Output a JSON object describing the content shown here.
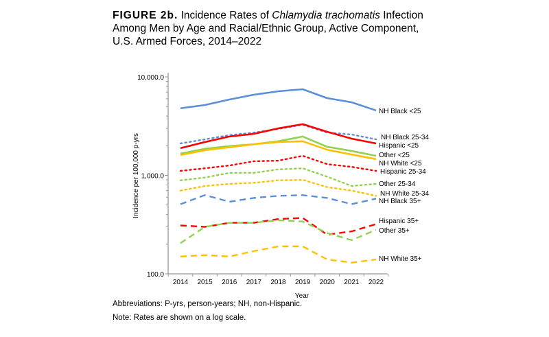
{
  "title": {
    "figure": "FIGURE 2b.",
    "pre": " Incidence Rates of ",
    "italic": "Chlamydia trachomatis",
    "post": " Infection Among Men by Age and Racial/Ethnic Group, Active Component, U.S. Armed Forces, 2014–2022"
  },
  "notes": [
    "Abbreviations: P-yrs, person-years; NH, non-Hispanic.",
    "Note: Rates are shown on a log scale."
  ],
  "chart_data": {
    "type": "line",
    "xlabel": "Year",
    "ylabel": "Incidence per 100,000 p-yrs",
    "yscale": "log",
    "ylim": [
      100,
      10000
    ],
    "yticks": [
      "100.0",
      "1,000.0",
      "10,000.0"
    ],
    "x": [
      "2014",
      "2015",
      "2016",
      "2017",
      "2018",
      "2019",
      "2020",
      "2021",
      "2022"
    ],
    "series": [
      {
        "name": "NH Black <25",
        "color": "#5B8ED8",
        "style": "solid",
        "values": [
          4800,
          5180,
          5890,
          6590,
          7140,
          7490,
          6080,
          5520,
          4560
        ]
      },
      {
        "name": "NH Black 25-34",
        "color": "#5B8ED8",
        "style": "dotted",
        "values": [
          2110,
          2320,
          2560,
          2720,
          2960,
          3260,
          2720,
          2600,
          2320
        ]
      },
      {
        "name": "Hispanic <25",
        "color": "#FF0000",
        "style": "solid",
        "values": [
          1890,
          2180,
          2480,
          2640,
          3000,
          3310,
          2770,
          2360,
          2110
        ]
      },
      {
        "name": "Other <25",
        "color": "#92D050",
        "style": "solid",
        "values": [
          1660,
          1860,
          1980,
          2070,
          2220,
          2480,
          1950,
          1770,
          1580
        ]
      },
      {
        "name": "NH White <25",
        "color": "#FFC000",
        "style": "solid",
        "values": [
          1610,
          1800,
          1930,
          2070,
          2180,
          2220,
          1820,
          1630,
          1460
        ]
      },
      {
        "name": "Hispanic 25-34",
        "color": "#FF0000",
        "style": "dotted",
        "values": [
          1110,
          1180,
          1260,
          1390,
          1410,
          1580,
          1300,
          1220,
          1110
        ]
      },
      {
        "name": "Other 25-34",
        "color": "#92D050",
        "style": "dotted",
        "values": [
          890,
          950,
          1060,
          1060,
          1150,
          1180,
          970,
          780,
          820
        ]
      },
      {
        "name": "NH White 25-34",
        "color": "#FFC000",
        "style": "dotted",
        "values": [
          700,
          780,
          820,
          840,
          890,
          900,
          760,
          700,
          620
        ]
      },
      {
        "name": "NH Black 35+",
        "color": "#5B8ED8",
        "style": "dashed",
        "values": [
          510,
          630,
          540,
          590,
          620,
          630,
          590,
          510,
          580
        ]
      },
      {
        "name": "Hispanic 35+",
        "color": "#FF0000",
        "style": "dashed",
        "values": [
          310,
          300,
          330,
          330,
          360,
          370,
          250,
          270,
          320
        ]
      },
      {
        "name": "Other 35+",
        "color": "#92D050",
        "style": "dashed",
        "values": [
          205,
          300,
          330,
          330,
          350,
          340,
          260,
          220,
          280
        ]
      },
      {
        "name": "NH White 35+",
        "color": "#FFC000",
        "style": "dashed",
        "values": [
          150,
          155,
          150,
          170,
          190,
          190,
          140,
          130,
          140
        ]
      }
    ]
  }
}
